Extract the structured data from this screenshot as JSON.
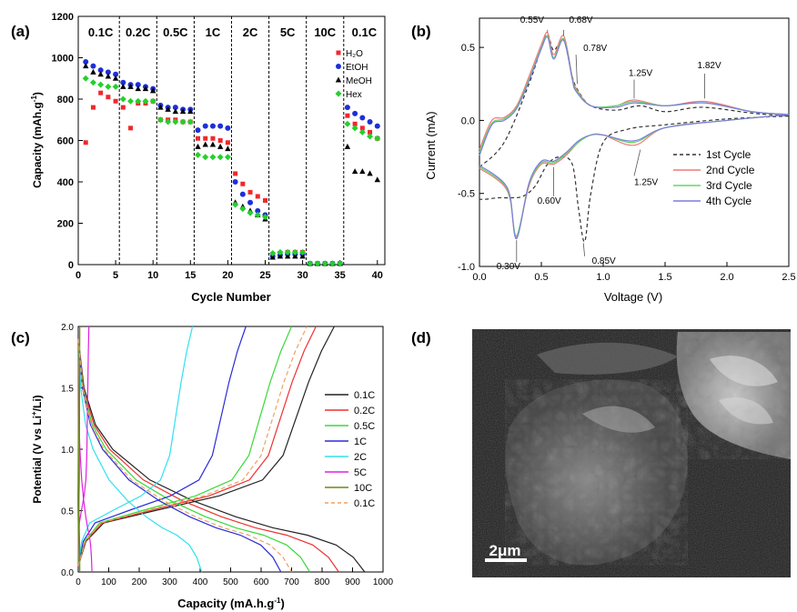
{
  "chart_data": [
    {
      "panel": "(a)",
      "type": "scatter",
      "xlabel": "Cycle Number",
      "ylabel": "Capacity (mAh.g",
      "ylabel_sup": "-1",
      "ylabel_end": ")",
      "xlim": [
        0,
        41
      ],
      "ylim": [
        0,
        1200
      ],
      "xticks": [
        0,
        5,
        10,
        15,
        20,
        25,
        30,
        35,
        40
      ],
      "yticks": [
        0,
        200,
        400,
        600,
        800,
        1000,
        1200
      ],
      "legend_position": "top-right",
      "rate_labels": [
        "0.1C",
        "0.2C",
        "0.5C",
        "1C",
        "2C",
        "5C",
        "10C",
        "0.1C"
      ],
      "dividers": [
        5.5,
        10.5,
        15.5,
        20.5,
        25.5,
        30.5,
        35.5
      ],
      "x": [
        1,
        2,
        3,
        4,
        5,
        6,
        7,
        8,
        9,
        10,
        11,
        12,
        13,
        14,
        15,
        16,
        17,
        18,
        19,
        20,
        21,
        22,
        23,
        24,
        25,
        26,
        27,
        28,
        29,
        30,
        31,
        32,
        33,
        34,
        35,
        36,
        37,
        38,
        39,
        40
      ],
      "series": [
        {
          "name": "H₂O",
          "color": "#f0282d",
          "marker": "square",
          "values": [
            590,
            760,
            830,
            810,
            790,
            760,
            660,
            780,
            780,
            790,
            700,
            700,
            700,
            690,
            690,
            610,
            610,
            610,
            600,
            590,
            440,
            390,
            350,
            330,
            310,
            50,
            55,
            60,
            60,
            60,
            5,
            5,
            5,
            5,
            5,
            720,
            680,
            660,
            640,
            610
          ]
        },
        {
          "name": "EtOH",
          "color": "#1d2fd8",
          "marker": "circle",
          "values": [
            980,
            960,
            940,
            930,
            920,
            880,
            870,
            870,
            860,
            850,
            770,
            760,
            760,
            750,
            750,
            650,
            670,
            670,
            670,
            660,
            400,
            340,
            300,
            260,
            240,
            40,
            45,
            50,
            50,
            50,
            5,
            5,
            5,
            5,
            5,
            760,
            730,
            710,
            690,
            670
          ]
        },
        {
          "name": "MeOH",
          "color": "#000000",
          "marker": "triangle",
          "values": [
            960,
            930,
            920,
            910,
            900,
            860,
            860,
            850,
            850,
            840,
            760,
            750,
            740,
            740,
            740,
            570,
            580,
            580,
            570,
            560,
            300,
            280,
            260,
            240,
            220,
            35,
            40,
            40,
            40,
            40,
            5,
            5,
            5,
            5,
            5,
            570,
            450,
            450,
            440,
            410
          ]
        },
        {
          "name": "Hex",
          "color": "#22d12a",
          "marker": "diamond",
          "values": [
            900,
            880,
            870,
            860,
            860,
            800,
            790,
            790,
            790,
            790,
            700,
            690,
            690,
            690,
            690,
            530,
            520,
            520,
            520,
            520,
            290,
            270,
            250,
            240,
            230,
            55,
            60,
            60,
            60,
            60,
            5,
            5,
            5,
            5,
            5,
            680,
            660,
            640,
            620,
            610
          ]
        }
      ]
    },
    {
      "panel": "(b)",
      "type": "line",
      "xlabel": "Voltage (V)",
      "ylabel": "Current (mA)",
      "xlim": [
        0,
        2.5
      ],
      "ylim": [
        -1.0,
        0.7
      ],
      "xticks": [
        0.0,
        0.5,
        1.0,
        1.5,
        2.0,
        2.5
      ],
      "yticks": [
        -1.0,
        -0.5,
        0.0,
        0.5
      ],
      "legend_position": "bottom-right",
      "annotations": [
        "0.55V",
        "0.68V",
        "0.78V",
        "1.25V",
        "1.82V",
        "1.25V",
        "0.60V",
        "0.30V",
        "0.85V"
      ],
      "series": [
        {
          "name": "1st Cycle",
          "color": "#333333",
          "style": "dashed",
          "anodic": {
            "x": [
              0.0,
              0.2,
              0.4,
              0.5,
              0.55,
              0.6,
              0.68,
              0.75,
              0.8,
              0.9,
              1.1,
              1.3,
              1.5,
              1.8,
              2.2,
              2.5
            ],
            "y": [
              -0.32,
              -0.15,
              0.25,
              0.5,
              0.59,
              0.48,
              0.55,
              0.3,
              0.2,
              0.1,
              0.07,
              0.1,
              0.06,
              0.09,
              0.05,
              0.03
            ]
          },
          "cathodic": {
            "x": [
              2.5,
              2.0,
              1.5,
              1.2,
              1.0,
              0.9,
              0.85,
              0.8,
              0.75,
              0.65,
              0.55,
              0.45,
              0.35,
              0.25,
              0.15,
              0.05,
              0.0
            ],
            "y": [
              0.03,
              0.01,
              -0.03,
              -0.06,
              -0.15,
              -0.5,
              -0.83,
              -0.6,
              -0.3,
              -0.25,
              -0.3,
              -0.45,
              -0.52,
              -0.53,
              -0.53,
              -0.54,
              -0.54
            ]
          }
        },
        {
          "name": "2nd Cycle",
          "color": "#f07878",
          "style": "solid",
          "anodic": {
            "x": [
              0.0,
              0.1,
              0.2,
              0.3,
              0.4,
              0.5,
              0.55,
              0.6,
              0.68,
              0.75,
              0.78,
              0.9,
              1.1,
              1.25,
              1.5,
              1.82,
              2.2,
              2.5
            ],
            "y": [
              -0.2,
              0.0,
              0.02,
              0.1,
              0.3,
              0.52,
              0.6,
              0.45,
              0.58,
              0.3,
              0.22,
              0.1,
              0.1,
              0.14,
              0.1,
              0.13,
              0.06,
              0.04
            ]
          },
          "cathodic": {
            "x": [
              2.5,
              2.0,
              1.5,
              1.25,
              1.0,
              0.9,
              0.8,
              0.7,
              0.6,
              0.5,
              0.4,
              0.3,
              0.25,
              0.2,
              0.1,
              0.0
            ],
            "y": [
              0.04,
              0.0,
              -0.05,
              -0.17,
              -0.1,
              -0.1,
              -0.15,
              -0.24,
              -0.3,
              -0.3,
              -0.45,
              -0.8,
              -0.55,
              -0.45,
              -0.38,
              -0.33
            ]
          }
        },
        {
          "name": "3rd Cycle",
          "color": "#62d862",
          "style": "solid",
          "anodic": {
            "x": [
              0.0,
              0.1,
              0.2,
              0.3,
              0.4,
              0.5,
              0.55,
              0.6,
              0.68,
              0.75,
              0.78,
              0.9,
              1.1,
              1.25,
              1.5,
              1.82,
              2.2,
              2.5
            ],
            "y": [
              -0.22,
              -0.02,
              0.01,
              0.09,
              0.28,
              0.5,
              0.58,
              0.43,
              0.56,
              0.29,
              0.21,
              0.1,
              0.1,
              0.13,
              0.1,
              0.12,
              0.06,
              0.04
            ]
          },
          "cathodic": {
            "x": [
              2.5,
              2.0,
              1.5,
              1.25,
              1.0,
              0.9,
              0.8,
              0.7,
              0.6,
              0.5,
              0.4,
              0.3,
              0.25,
              0.2,
              0.1,
              0.0
            ],
            "y": [
              0.04,
              0.0,
              -0.05,
              -0.15,
              -0.1,
              -0.1,
              -0.15,
              -0.23,
              -0.29,
              -0.29,
              -0.44,
              -0.79,
              -0.54,
              -0.44,
              -0.37,
              -0.32
            ]
          }
        },
        {
          "name": "4th Cycle",
          "color": "#7a7ee0",
          "style": "solid",
          "anodic": {
            "x": [
              0.0,
              0.1,
              0.2,
              0.3,
              0.4,
              0.5,
              0.55,
              0.6,
              0.68,
              0.75,
              0.78,
              0.9,
              1.1,
              1.25,
              1.5,
              1.82,
              2.2,
              2.5
            ],
            "y": [
              -0.24,
              -0.03,
              0.0,
              0.08,
              0.27,
              0.49,
              0.57,
              0.42,
              0.55,
              0.28,
              0.2,
              0.1,
              0.09,
              0.12,
              0.1,
              0.12,
              0.06,
              0.04
            ]
          },
          "cathodic": {
            "x": [
              2.5,
              2.0,
              1.5,
              1.25,
              1.0,
              0.9,
              0.8,
              0.7,
              0.6,
              0.5,
              0.4,
              0.3,
              0.25,
              0.2,
              0.1,
              0.0
            ],
            "y": [
              0.04,
              0.0,
              -0.05,
              -0.14,
              -0.1,
              -0.1,
              -0.14,
              -0.22,
              -0.28,
              -0.28,
              -0.43,
              -0.81,
              -0.53,
              -0.43,
              -0.36,
              -0.31
            ]
          }
        }
      ]
    },
    {
      "panel": "(c)",
      "type": "line",
      "xlabel": "Capacity (mA.h.g",
      "xlabel_sup": "-1",
      "xlabel_end": ")",
      "ylabel": "Potential (V vs Li",
      "ylabel_sup": "+",
      "ylabel_end": "/Li)",
      "xlim": [
        0,
        1000
      ],
      "ylim": [
        0.0,
        2.0
      ],
      "xticks": [
        0,
        100,
        200,
        300,
        400,
        500,
        600,
        700,
        800,
        900,
        1000
      ],
      "yticks": [
        0.0,
        0.5,
        1.0,
        1.5,
        2.0
      ],
      "legend_position": "right",
      "series": [
        {
          "name": "0.1C",
          "color": "#222222",
          "style": "solid",
          "discharge_cap": 940,
          "charge_cap": 840
        },
        {
          "name": "0.2C",
          "color": "#f03030",
          "style": "solid",
          "discharge_cap": 855,
          "charge_cap": 780
        },
        {
          "name": "0.5C",
          "color": "#3ad83a",
          "style": "solid",
          "discharge_cap": 760,
          "charge_cap": 700
        },
        {
          "name": "1C",
          "color": "#2b2bd8",
          "style": "solid",
          "discharge_cap": 665,
          "charge_cap": 550
        },
        {
          "name": "2C",
          "color": "#30e0f0",
          "style": "solid",
          "discharge_cap": 405,
          "charge_cap": 375
        },
        {
          "name": "5C",
          "color": "#e020e0",
          "style": "solid",
          "discharge_cap": 45,
          "charge_cap": 35
        },
        {
          "name": "10C",
          "color": "#6a8a10",
          "style": "solid",
          "discharge_cap": 5,
          "charge_cap": 5
        },
        {
          "name": "0.1C",
          "color": "#f0a060",
          "style": "dashed",
          "discharge_cap": 700,
          "charge_cap": 750
        }
      ]
    }
  ],
  "panel_d": {
    "label": "(d)",
    "scale_bar": "2μm"
  }
}
